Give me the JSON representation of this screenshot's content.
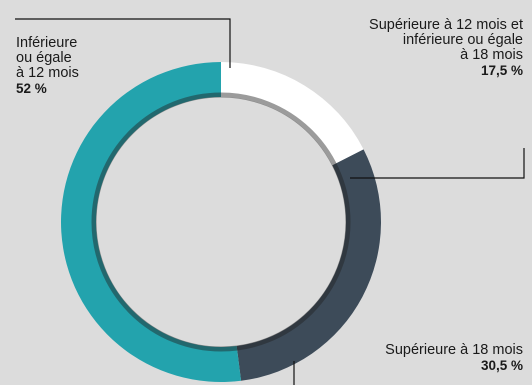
{
  "chart_data": {
    "type": "pie",
    "variant": "donut",
    "slices": [
      {
        "key": "le12",
        "label_lines": [
          "Inférieure",
          "ou égale",
          "à 12 mois"
        ],
        "value_label": "52 %",
        "value": 52,
        "color": "#23a3ad"
      },
      {
        "key": "12to18",
        "label_lines": [
          "Supérieure à 12 mois et",
          "inférieure ou égale",
          "à 18 mois"
        ],
        "value_label": "17,5 %",
        "value": 17.5,
        "color": "#ffffff"
      },
      {
        "key": "gt18",
        "label_lines": [
          "Supérieure à 18 mois"
        ],
        "value_label": "30,5 %",
        "value": 30.5,
        "color": "#3d4b59"
      }
    ],
    "inner_ring_color": "#222222",
    "leader_line_color": "#111111",
    "background": "#dcdcdc"
  }
}
